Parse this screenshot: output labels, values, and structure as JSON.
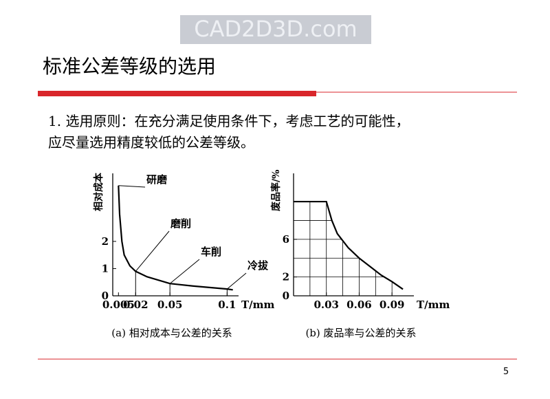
{
  "watermark": "CAD2D3D.com",
  "title": "标准公差等级的选用",
  "body": [
    "1. 选用原则：在充分满足使用条件下，考虑工艺的可能性，",
    "应尽量选用精度较低的公差等级。"
  ],
  "page_number": "5",
  "chart_data": [
    {
      "type": "line",
      "caption": "(a) 相对成本与公差的关系",
      "y_label": "相对成本",
      "x_label": "T/mm",
      "x": [
        0.005,
        0.006,
        0.008,
        0.01,
        0.015,
        0.02,
        0.03,
        0.05,
        0.07,
        0.1,
        0.105
      ],
      "values": [
        4.05,
        3.0,
        2.0,
        1.5,
        1.1,
        0.9,
        0.7,
        0.45,
        0.36,
        0.25,
        0.22
      ],
      "color": "#000000",
      "drop_lines": [
        5,
        7,
        9
      ],
      "annotations": [
        "研磨",
        "磨削",
        "车削",
        "冷拔"
      ],
      "xlim": [
        0,
        0.11
      ],
      "ylim": [
        0,
        4.5
      ],
      "xticks": [
        0.005,
        0.02,
        0.05,
        0.1
      ],
      "yticks": [
        0,
        1,
        2
      ]
    },
    {
      "type": "line",
      "caption": "(b) 废品率与公差的关系",
      "y_label": "废品率/%",
      "x_label": "T/mm",
      "x": [
        0,
        0.03,
        0.035,
        0.04,
        0.05,
        0.06,
        0.07,
        0.08,
        0.09,
        0.1
      ],
      "values": [
        10,
        10,
        8,
        6.6,
        5.1,
        4,
        3.1,
        2.2,
        1.5,
        0.7
      ],
      "color": "#000000",
      "grid_x": [
        0.015,
        0.03,
        0.045,
        0.06,
        0.075,
        0.09
      ],
      "grid_y": [
        2,
        4,
        6,
        8
      ],
      "xlim": [
        0,
        0.11
      ],
      "ylim": [
        0,
        13
      ],
      "xticks": [
        0.03,
        0.06,
        0.09
      ],
      "yticks": [
        0,
        2,
        6
      ]
    }
  ]
}
